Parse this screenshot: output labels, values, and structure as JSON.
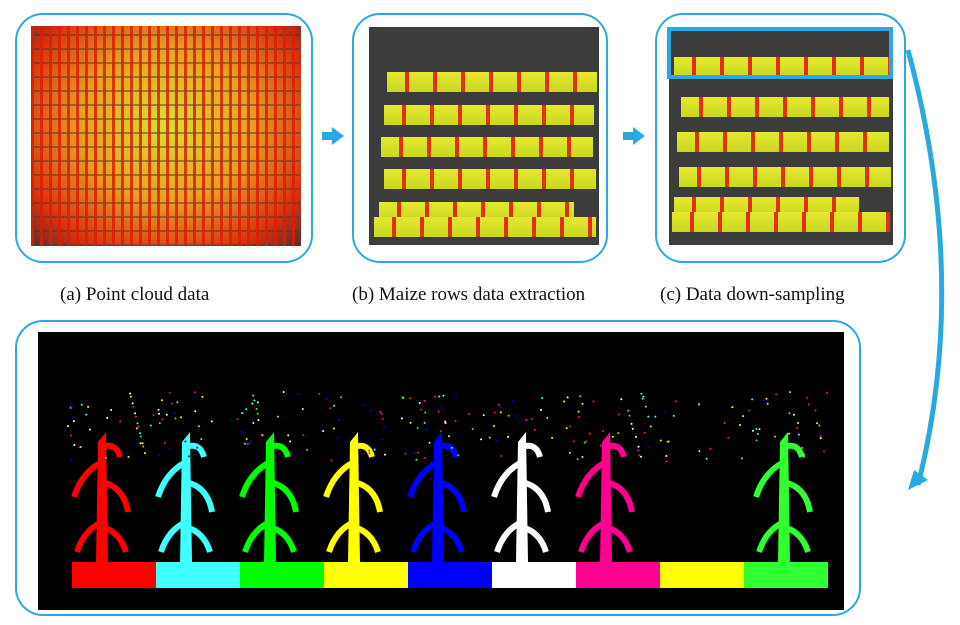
{
  "captions": {
    "a": "(a) Point cloud data",
    "b": "(b) Maize rows data extraction",
    "c": "(c) Data down-sampling"
  },
  "colors": {
    "accent": "#2aa9e0",
    "segments": [
      "#ff0000",
      "#40ffff",
      "#00ff00",
      "#ffff00",
      "#0000ff",
      "#ffffff",
      "#ff0090",
      "#ffff00",
      "#30ff30"
    ]
  }
}
